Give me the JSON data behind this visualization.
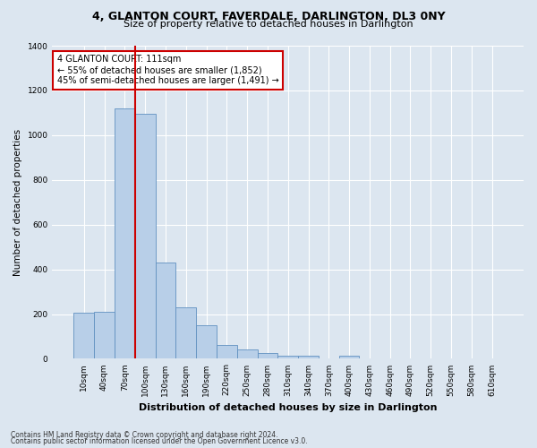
{
  "title": "4, GLANTON COURT, FAVERDALE, DARLINGTON, DL3 0NY",
  "subtitle": "Size of property relative to detached houses in Darlington",
  "xlabel": "Distribution of detached houses by size in Darlington",
  "ylabel": "Number of detached properties",
  "footnote1": "Contains HM Land Registry data © Crown copyright and database right 2024.",
  "footnote2": "Contains public sector information licensed under the Open Government Licence v3.0.",
  "categories": [
    "10sqm",
    "40sqm",
    "70sqm",
    "100sqm",
    "130sqm",
    "160sqm",
    "190sqm",
    "220sqm",
    "250sqm",
    "280sqm",
    "310sqm",
    "340sqm",
    "370sqm",
    "400sqm",
    "430sqm",
    "460sqm",
    "490sqm",
    "520sqm",
    "550sqm",
    "580sqm",
    "610sqm"
  ],
  "values": [
    205,
    210,
    1120,
    1095,
    430,
    230,
    150,
    60,
    40,
    25,
    15,
    15,
    0,
    15,
    0,
    0,
    0,
    0,
    0,
    0,
    0
  ],
  "bar_color": "#b8cfe8",
  "bar_edge_color": "#6090c0",
  "vline_x": 2.5,
  "vline_color": "#cc0000",
  "annotation_text": "4 GLANTON COURT: 111sqm\n← 55% of detached houses are smaller (1,852)\n45% of semi-detached houses are larger (1,491) →",
  "annotation_box_color": "#cc0000",
  "ylim": [
    0,
    1400
  ],
  "yticks": [
    0,
    200,
    400,
    600,
    800,
    1000,
    1200,
    1400
  ],
  "bg_color": "#dce6f0",
  "plot_bg_color": "#dce6f0",
  "grid_color": "#ffffff",
  "title_fontsize": 9,
  "subtitle_fontsize": 8,
  "xlabel_fontsize": 8,
  "ylabel_fontsize": 7.5,
  "tick_fontsize": 6.5,
  "annotation_fontsize": 7,
  "footnote_fontsize": 5.5
}
